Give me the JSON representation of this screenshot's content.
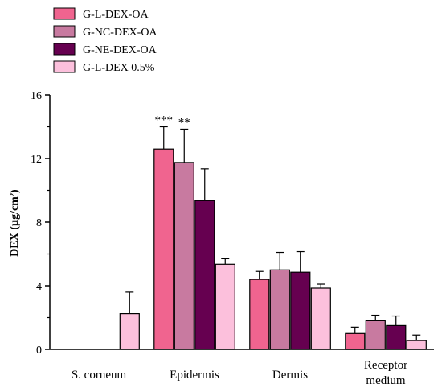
{
  "chart_data": {
    "type": "bar",
    "title": "",
    "xlabel": "",
    "ylabel": "DEX (µg/cm²)",
    "ylim": [
      0,
      16
    ],
    "yticks": [
      0,
      4,
      8,
      12,
      16
    ],
    "grid": false,
    "legend_position": "top-left",
    "categories": [
      "S. corneum",
      "Epidermis",
      "Dermis",
      "Receptor medium"
    ],
    "series": [
      {
        "name": "G-L-DEX-OA",
        "color": "#f0648f",
        "values": [
          0,
          12.6,
          4.4,
          1.0
        ],
        "errors": [
          0,
          1.4,
          0.5,
          0.4
        ]
      },
      {
        "name": "G-NC-DEX-OA",
        "color": "#c87aa0",
        "values": [
          0,
          11.75,
          5.0,
          1.8
        ],
        "errors": [
          0,
          2.1,
          1.1,
          0.35
        ]
      },
      {
        "name": "G-NE-DEX-OA",
        "color": "#660050",
        "values": [
          0,
          9.35,
          4.85,
          1.5
        ],
        "errors": [
          0,
          2.0,
          1.3,
          0.6
        ]
      },
      {
        "name": "G-L-DEX 0.5%",
        "color": "#fcc0dc",
        "values": [
          2.25,
          5.35,
          3.85,
          0.55
        ],
        "errors": [
          1.35,
          0.35,
          0.25,
          0.35
        ]
      }
    ],
    "annotations": [
      {
        "category": "Epidermis",
        "series": "G-L-DEX-OA",
        "text": "***"
      },
      {
        "category": "Epidermis",
        "series": "G-NC-DEX-OA",
        "text": "**"
      }
    ]
  }
}
